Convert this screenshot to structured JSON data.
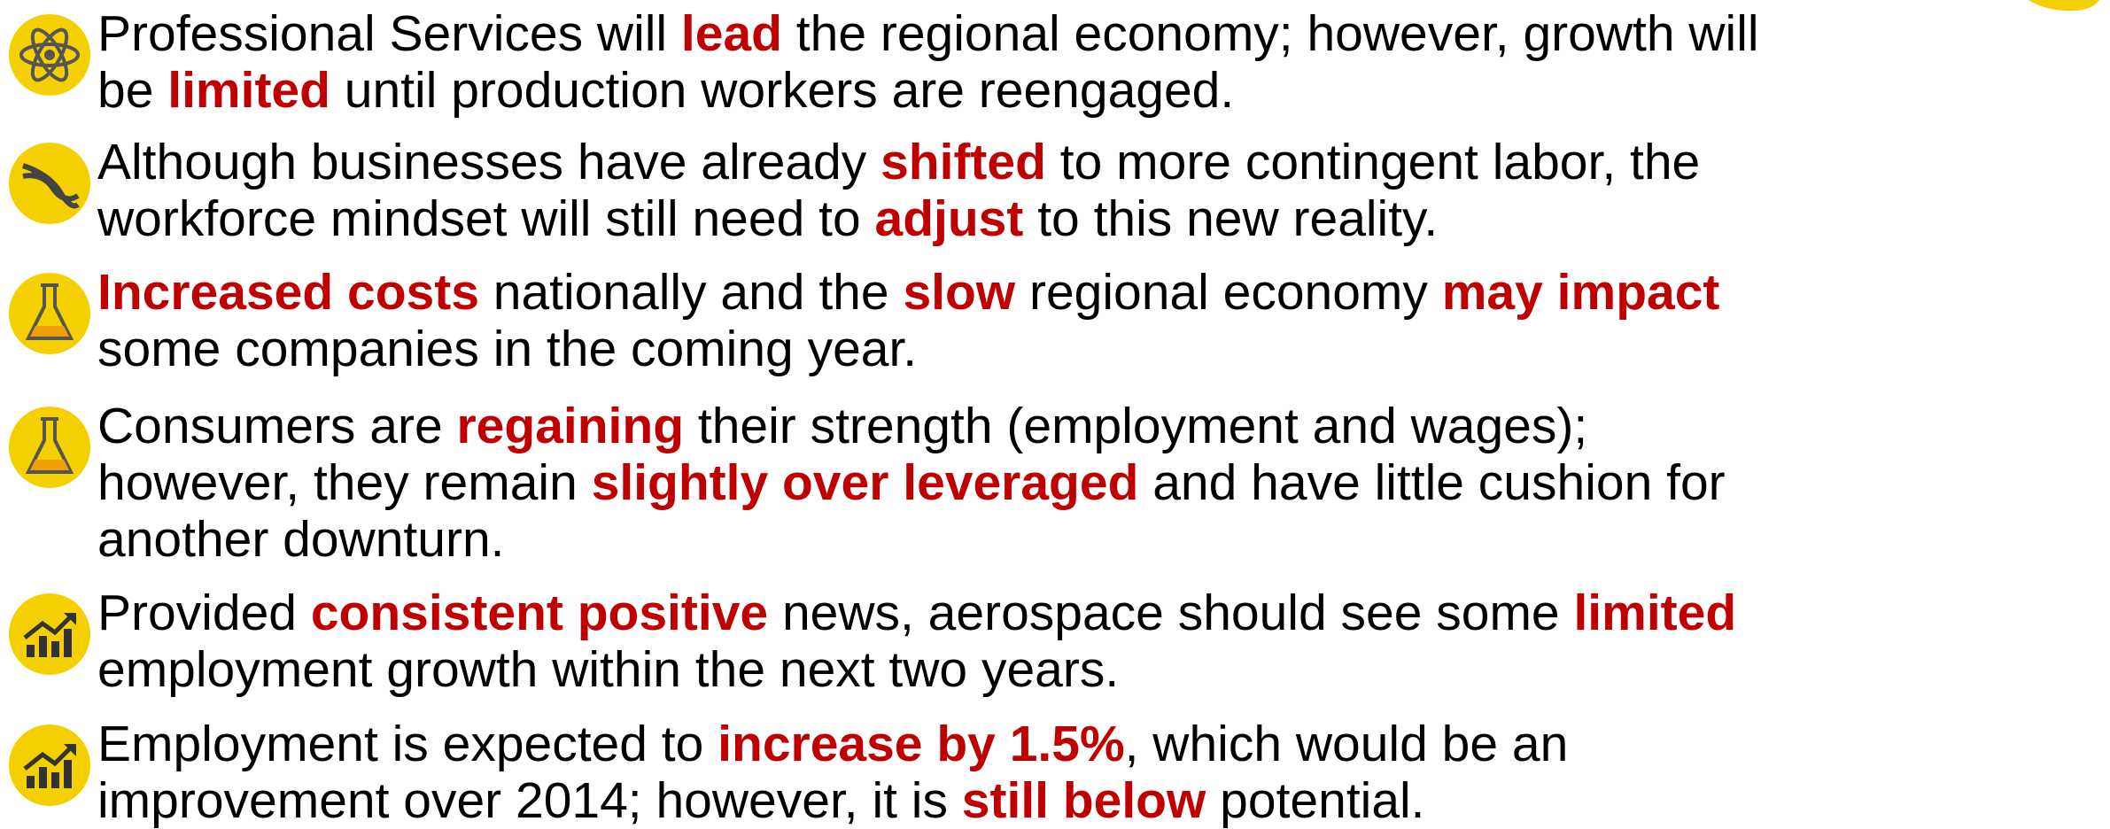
{
  "bullets": [
    {
      "lines": [
        [
          {
            "text": "Professional Services will "
          },
          {
            "text": "lead",
            "highlight": true
          },
          {
            "text": " the regional economy; however, growth will"
          }
        ],
        [
          {
            "text": "be "
          },
          {
            "text": "limited",
            "highlight": true
          },
          {
            "text": " until production workers are reengaged."
          }
        ]
      ]
    },
    {
      "lines": [
        [
          {
            "text": "Although businesses have already "
          },
          {
            "text": "shifted",
            "highlight": true
          },
          {
            "text": " to more contingent labor, the"
          }
        ],
        [
          {
            "text": "workforce mindset will still need to "
          },
          {
            "text": "adjust",
            "highlight": true
          },
          {
            "text": " to this new reality."
          }
        ]
      ]
    },
    {
      "lines": [
        [
          {
            "text": "Increased costs",
            "highlight": true
          },
          {
            "text": " nationally and the "
          },
          {
            "text": "slow",
            "highlight": true
          },
          {
            "text": " regional economy "
          },
          {
            "text": "may impact",
            "highlight": true
          }
        ],
        [
          {
            "text": "some companies in the coming year."
          }
        ]
      ]
    },
    {
      "lines": [
        [
          {
            "text": "Consumers are "
          },
          {
            "text": "regaining",
            "highlight": true
          },
          {
            "text": " their strength (employment and wages);"
          }
        ],
        [
          {
            "text": "however, they remain "
          },
          {
            "text": "slightly over leveraged",
            "highlight": true
          },
          {
            "text": " and have little cushion for"
          }
        ],
        [
          {
            "text": "another downturn."
          }
        ]
      ]
    },
    {
      "lines": [
        [
          {
            "text": "Provided "
          },
          {
            "text": "consistent positive",
            "highlight": true
          },
          {
            "text": " news, aerospace should see some "
          },
          {
            "text": "limited",
            "highlight": true
          }
        ],
        [
          {
            "text": "employment growth within the next two years."
          }
        ]
      ]
    },
    {
      "lines": [
        [
          {
            "text": "Employment is expected to "
          },
          {
            "text": "increase by 1.5%",
            "highlight": true
          },
          {
            "text": ", which would be an"
          }
        ],
        [
          {
            "text": "improvement over 2014; however, it is "
          },
          {
            "text": "still below",
            "highlight": true
          },
          {
            "text": " potential."
          }
        ]
      ]
    }
  ]
}
